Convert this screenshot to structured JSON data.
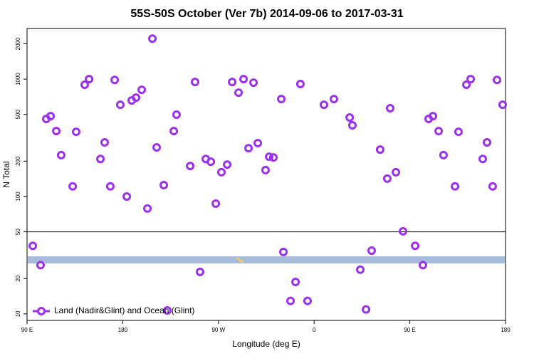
{
  "chart_data": {
    "type": "scatter",
    "title": "55S-50S October (Ver 7b)   2014-09-06 to 2017-03-31",
    "x_label": "Longitude (deg E)",
    "y_label": "N Total",
    "y_log": true,
    "xlim": [
      90,
      540
    ],
    "ylim": [
      8.8,
      2700
    ],
    "xticks": [
      {
        "value": 90,
        "label": "90 E"
      },
      {
        "value": 180,
        "label": "180"
      },
      {
        "value": 270,
        "label": "90 W"
      },
      {
        "value": 360,
        "label": "0"
      },
      {
        "value": 450,
        "label": "90 E"
      },
      {
        "value": 540,
        "label": "180"
      }
    ],
    "yticks": [
      10,
      20,
      50,
      100,
      200,
      500,
      1000,
      2000
    ],
    "reference_line": 50,
    "legend_position": "bottom-left",
    "series": [
      {
        "name": "Land (Nadir&Glint) and Ocean (Glint)",
        "color": "#9b30f0",
        "x": [
          95.4,
          102.7,
          108.1,
          112.1,
          117.5,
          122.1,
          132.9,
          136.2,
          144.2,
          148.3,
          159,
          163,
          168.3,
          172.4,
          177.7,
          183.8,
          188.4,
          192.5,
          197.8,
          203.2,
          207.9,
          211.9,
          218.6,
          221.9,
          228,
          230.6,
          243.4,
          248,
          252.7,
          258.1,
          262.8,
          267.5,
          272.8,
          278.2,
          282.9,
          288.9,
          293.6,
          298.3,
          303,
          307,
          314.3,
          317.7,
          321.7,
          329.1,
          331.1,
          337.8,
          342.5,
          347.1,
          353.8,
          369.2,
          378.6,
          393.4,
          396,
          403.4,
          408.8,
          414.1,
          422.1,
          428.8,
          431.5,
          436.9,
          443.6,
          455,
          462.3,
          467.7,
          471.7,
          477.1,
          481.7,
          492.5,
          495.8,
          503.2,
          507.2,
          518.6,
          522.6,
          527.9,
          532,
          537.3
        ],
        "values": [
          38,
          26,
          458,
          484,
          361,
          225,
          122,
          356,
          895,
          1000,
          209,
          289,
          122,
          985,
          605,
          100,
          658,
          695,
          811,
          79,
          2213,
          262,
          125,
          10.7,
          361,
          498,
          182,
          946,
          22.8,
          209,
          198,
          87,
          161,
          187,
          946,
          767,
          1000,
          258,
          933,
          285,
          168,
          218,
          215,
          676,
          33.7,
          12.9,
          18.7,
          908,
          12.9,
          605,
          676,
          471,
          404,
          23.8,
          10.9,
          34.6,
          251,
          142,
          565,
          161,
          50.5,
          38,
          26,
          458,
          484,
          361,
          225,
          122,
          356,
          895,
          1000,
          209,
          289,
          122,
          985,
          605
        ]
      }
    ]
  }
}
